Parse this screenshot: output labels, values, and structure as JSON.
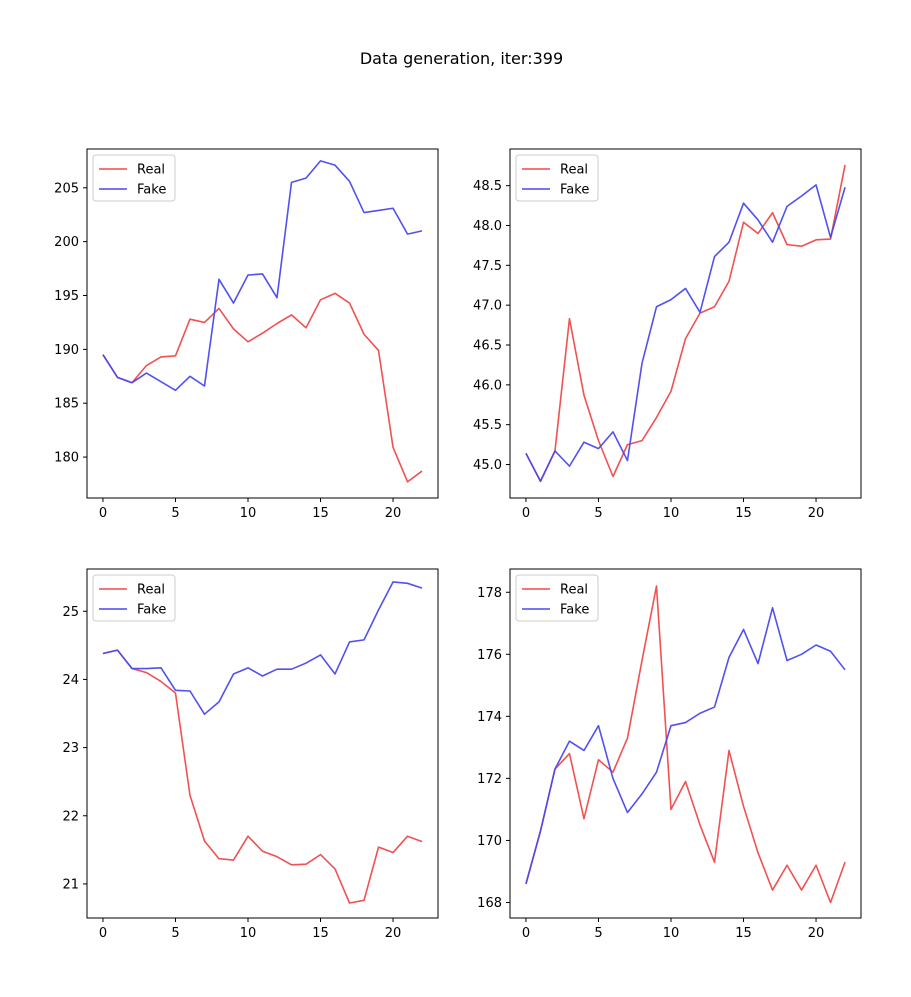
{
  "figure": {
    "suptitle": "Data generation, iter:399"
  },
  "colors": {
    "real": "#f04848",
    "fake": "#4848f0",
    "axes": "#000000",
    "legend_border": "#cccccc"
  },
  "chart_data": [
    {
      "type": "line",
      "title": "",
      "xlabel": "",
      "ylabel": "",
      "grid": false,
      "legend": "upper-left",
      "xlim": [
        -1.1,
        23.1
      ],
      "ylim": [
        176.2,
        208.6
      ],
      "xticks": [
        0,
        5,
        10,
        15,
        20
      ],
      "yticks": [
        180,
        185,
        190,
        195,
        200,
        205
      ],
      "x": [
        0,
        1,
        2,
        3,
        4,
        5,
        6,
        7,
        8,
        9,
        10,
        11,
        12,
        13,
        14,
        15,
        16,
        17,
        18,
        19,
        20,
        21,
        22
      ],
      "series": [
        {
          "name": "Real",
          "color": "#f04848",
          "values": [
            189.5,
            187.4,
            186.9,
            188.5,
            189.3,
            189.4,
            192.8,
            192.5,
            193.8,
            191.9,
            190.7,
            191.5,
            192.4,
            193.2,
            192.0,
            194.6,
            195.2,
            194.3,
            191.4,
            189.9,
            180.9,
            177.7,
            178.7
          ]
        },
        {
          "name": "Fake",
          "color": "#4848f0",
          "values": [
            189.5,
            187.4,
            186.9,
            187.8,
            187.0,
            186.2,
            187.5,
            186.6,
            196.5,
            194.3,
            196.9,
            197.0,
            194.8,
            205.5,
            205.9,
            207.5,
            207.1,
            205.6,
            202.7,
            202.9,
            203.1,
            200.7,
            201.0
          ]
        }
      ]
    },
    {
      "type": "line",
      "title": "",
      "xlabel": "",
      "ylabel": "",
      "grid": false,
      "legend": "upper-left",
      "xlim": [
        -1.1,
        23.1
      ],
      "ylim": [
        44.58,
        48.96
      ],
      "xticks": [
        0,
        5,
        10,
        15,
        20
      ],
      "yticks": [
        45.0,
        45.5,
        46.0,
        46.5,
        47.0,
        47.5,
        48.0,
        48.5
      ],
      "x": [
        0,
        1,
        2,
        3,
        4,
        5,
        6,
        7,
        8,
        9,
        10,
        11,
        12,
        13,
        14,
        15,
        16,
        17,
        18,
        19,
        20,
        21,
        22
      ],
      "series": [
        {
          "name": "Real",
          "color": "#f04848",
          "values": [
            45.14,
            44.79,
            45.17,
            46.83,
            45.87,
            45.3,
            44.85,
            45.25,
            45.3,
            45.59,
            45.92,
            46.58,
            46.9,
            46.98,
            47.3,
            48.04,
            47.9,
            48.16,
            47.76,
            47.74,
            47.82,
            47.83,
            48.76
          ]
        },
        {
          "name": "Fake",
          "color": "#4848f0",
          "values": [
            45.14,
            44.79,
            45.17,
            44.98,
            45.28,
            45.2,
            45.41,
            45.05,
            46.27,
            46.98,
            47.07,
            47.21,
            46.91,
            47.61,
            47.79,
            48.28,
            48.07,
            47.79,
            48.24,
            48.37,
            48.51,
            47.85,
            48.48
          ]
        }
      ]
    },
    {
      "type": "line",
      "title": "",
      "xlabel": "",
      "ylabel": "",
      "grid": false,
      "legend": "upper-left",
      "xlim": [
        -1.1,
        23.1
      ],
      "ylim": [
        20.5,
        25.62
      ],
      "xticks": [
        0,
        5,
        10,
        15,
        20
      ],
      "yticks": [
        21,
        22,
        23,
        24,
        25
      ],
      "x": [
        0,
        1,
        2,
        3,
        4,
        5,
        6,
        7,
        8,
        9,
        10,
        11,
        12,
        13,
        14,
        15,
        16,
        17,
        18,
        19,
        20,
        21,
        22
      ],
      "series": [
        {
          "name": "Real",
          "color": "#f04848",
          "values": [
            24.38,
            24.43,
            24.16,
            24.1,
            23.97,
            23.8,
            22.3,
            21.63,
            21.37,
            21.35,
            21.7,
            21.48,
            21.4,
            21.28,
            21.29,
            21.43,
            21.22,
            20.72,
            20.76,
            21.54,
            21.46,
            21.7,
            21.62
          ]
        },
        {
          "name": "Fake",
          "color": "#4848f0",
          "values": [
            24.38,
            24.43,
            24.16,
            24.16,
            24.17,
            23.84,
            23.83,
            23.49,
            23.67,
            24.08,
            24.17,
            24.05,
            24.15,
            24.15,
            24.24,
            24.36,
            24.08,
            24.55,
            24.58,
            25.02,
            25.43,
            25.41,
            25.34
          ]
        }
      ]
    },
    {
      "type": "line",
      "title": "",
      "xlabel": "",
      "ylabel": "",
      "grid": false,
      "legend": "upper-left",
      "xlim": [
        -1.1,
        23.1
      ],
      "ylim": [
        167.5,
        178.75
      ],
      "xticks": [
        0,
        5,
        10,
        15,
        20
      ],
      "yticks": [
        168,
        170,
        172,
        174,
        176,
        178
      ],
      "x": [
        0,
        1,
        2,
        3,
        4,
        5,
        6,
        7,
        8,
        9,
        10,
        11,
        12,
        13,
        14,
        15,
        16,
        17,
        18,
        19,
        20,
        21,
        22
      ],
      "series": [
        {
          "name": "Real",
          "color": "#f04848",
          "values": [
            168.6,
            170.3,
            172.3,
            172.8,
            170.7,
            172.6,
            172.2,
            173.3,
            175.8,
            178.2,
            171.0,
            171.9,
            170.5,
            169.3,
            172.9,
            171.1,
            169.6,
            168.4,
            169.2,
            168.4,
            169.2,
            168.0,
            169.3
          ]
        },
        {
          "name": "Fake",
          "color": "#4848f0",
          "values": [
            168.6,
            170.3,
            172.3,
            173.2,
            172.9,
            173.7,
            172.0,
            170.9,
            171.5,
            172.2,
            173.7,
            173.8,
            174.1,
            174.3,
            175.9,
            176.8,
            175.7,
            177.5,
            175.8,
            176.0,
            176.3,
            176.1,
            175.5
          ]
        }
      ]
    }
  ]
}
